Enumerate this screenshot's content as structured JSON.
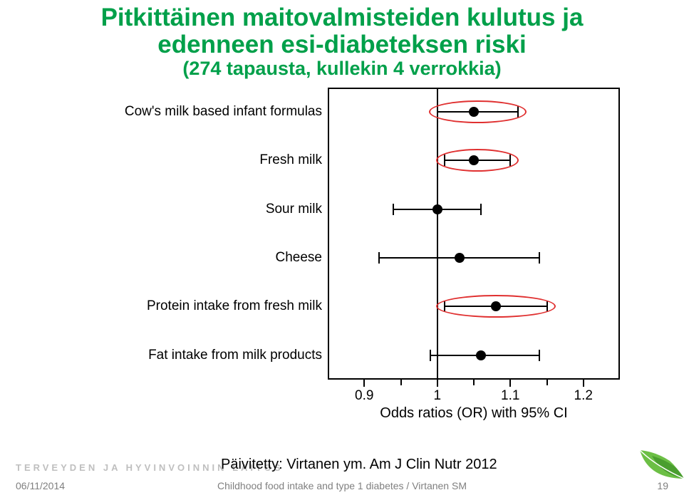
{
  "title": {
    "line1": "Pitkittäinen maitovalmisteiden kulutus ja",
    "line2": "edenneen esi-diabeteksen riski",
    "subtitle": "(274 tapausta, kullekin 4 verrokkia)"
  },
  "chart": {
    "type": "forest",
    "x_axis": {
      "min": 0.85,
      "max": 1.25,
      "ticks": [
        0.9,
        1.0,
        1.1,
        1.2
      ],
      "tick_labels": [
        "0.9",
        "1",
        "1.1",
        "1.2"
      ],
      "title": "Odds ratios (OR) with 95% CI"
    },
    "reference_line": 1.0,
    "categories": [
      {
        "label": "Cow's milk based infant formulas",
        "or": 1.05,
        "lo": 1.0,
        "hi": 1.11,
        "highlight": true
      },
      {
        "label": "Fresh milk",
        "or": 1.05,
        "lo": 1.01,
        "hi": 1.1,
        "highlight": true
      },
      {
        "label": "Sour milk",
        "or": 1.0,
        "lo": 0.94,
        "hi": 1.06,
        "highlight": false
      },
      {
        "label": "Cheese",
        "or": 1.03,
        "lo": 0.92,
        "hi": 1.14,
        "highlight": false
      },
      {
        "label": "Protein intake from fresh milk",
        "or": 1.08,
        "lo": 1.01,
        "hi": 1.15,
        "highlight": true
      },
      {
        "label": "Fat intake from milk products",
        "or": 1.06,
        "lo": 0.99,
        "hi": 1.14,
        "highlight": false
      }
    ],
    "colors": {
      "frame": "#000000",
      "point": "#000000",
      "line": "#000000",
      "highlight": "#e03030",
      "bg": "#ffffff"
    },
    "fontsize": {
      "title": 35,
      "subtitle": 27,
      "cat": 19,
      "tick": 19,
      "axistitle": 20
    }
  },
  "footer": {
    "thl": "TERVEYDEN JA HYVINVOINNIN LAITOS",
    "updated": "Päivitetty: Virtanen ym. Am J Clin Nutr 2012",
    "date": "06/11/2014",
    "mid": "Childhood food intake and type 1 diabetes / Virtanen SM",
    "page": "19"
  }
}
